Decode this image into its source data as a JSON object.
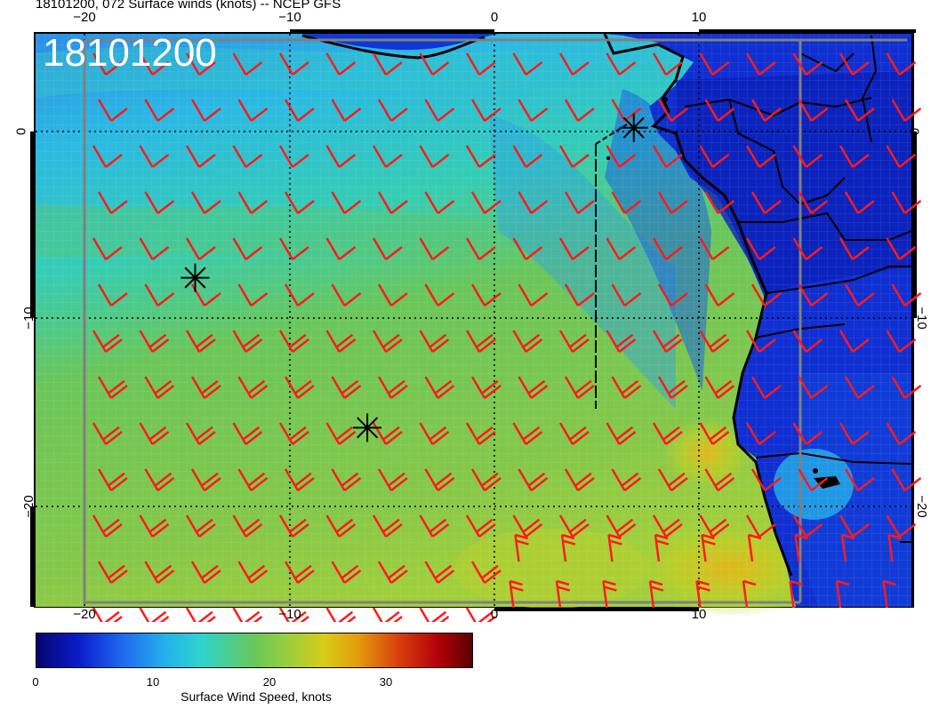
{
  "title": "18101200, 072 Surface winds (knots) -- NCEP GFS",
  "stamp": "18101200",
  "axes": {
    "x_ticks_top": [
      "−20",
      "−10",
      "0",
      "10"
    ],
    "x_ticks_bottom": [
      "−20",
      "−10",
      "0",
      "10"
    ],
    "y_ticks_left": [
      "0",
      "−10",
      "−20"
    ],
    "y_ticks_right": [
      "0",
      "−10",
      "−20"
    ],
    "lon_range": [
      -22.5,
      20
    ],
    "lat_range": [
      -25,
      5
    ],
    "gridlines": "dotted"
  },
  "colorbar": {
    "label": "Surface Wind Speed, knots",
    "ticks": [
      "0",
      "10",
      "20",
      "30"
    ],
    "range": [
      0,
      37
    ]
  },
  "colors": {
    "barbs": "#ff1a1a",
    "coastline": "#000000",
    "markers": "#000000"
  },
  "markers": [
    {
      "name": "star-marker-equator",
      "lon": 6.8,
      "lat": 0.2
    },
    {
      "name": "star-marker-west",
      "lon": -14.6,
      "lat": -7.8
    },
    {
      "name": "star-marker-south",
      "lon": -6.2,
      "lat": -15.8
    }
  ]
}
